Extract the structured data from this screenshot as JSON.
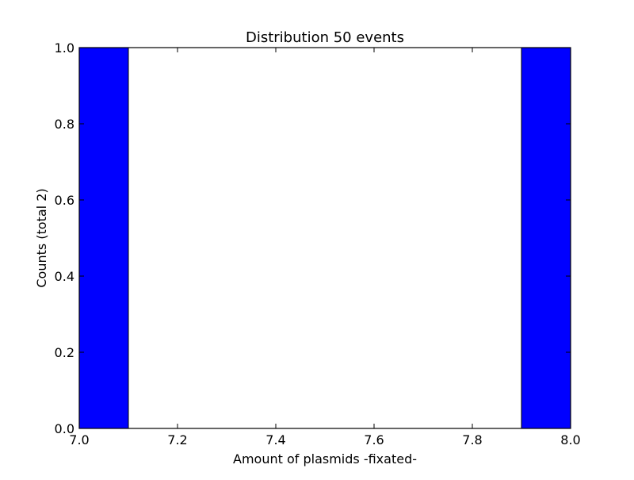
{
  "chart_data": {
    "type": "bar",
    "title": "Distribution 50 events",
    "xlabel": "Amount of plasmids -fixated-",
    "ylabel": "Counts (total 2)",
    "xlim": [
      7.0,
      8.0
    ],
    "ylim": [
      0.0,
      1.0
    ],
    "x_ticks": [
      "7.0",
      "7.2",
      "7.4",
      "7.6",
      "7.8",
      "8.0"
    ],
    "y_ticks": [
      "0.0",
      "0.2",
      "0.4",
      "0.6",
      "0.8",
      "1.0"
    ],
    "bins": [
      {
        "start": 7.0,
        "end": 7.1,
        "count": 1
      },
      {
        "start": 7.1,
        "end": 7.2,
        "count": 0
      },
      {
        "start": 7.2,
        "end": 7.3,
        "count": 0
      },
      {
        "start": 7.3,
        "end": 7.4,
        "count": 0
      },
      {
        "start": 7.4,
        "end": 7.5,
        "count": 0
      },
      {
        "start": 7.5,
        "end": 7.6,
        "count": 0
      },
      {
        "start": 7.6,
        "end": 7.7,
        "count": 0
      },
      {
        "start": 7.7,
        "end": 7.8,
        "count": 0
      },
      {
        "start": 7.8,
        "end": 7.9,
        "count": 0
      },
      {
        "start": 7.9,
        "end": 8.0,
        "count": 1
      }
    ],
    "bar_color": "#0000ff",
    "grid": false
  }
}
